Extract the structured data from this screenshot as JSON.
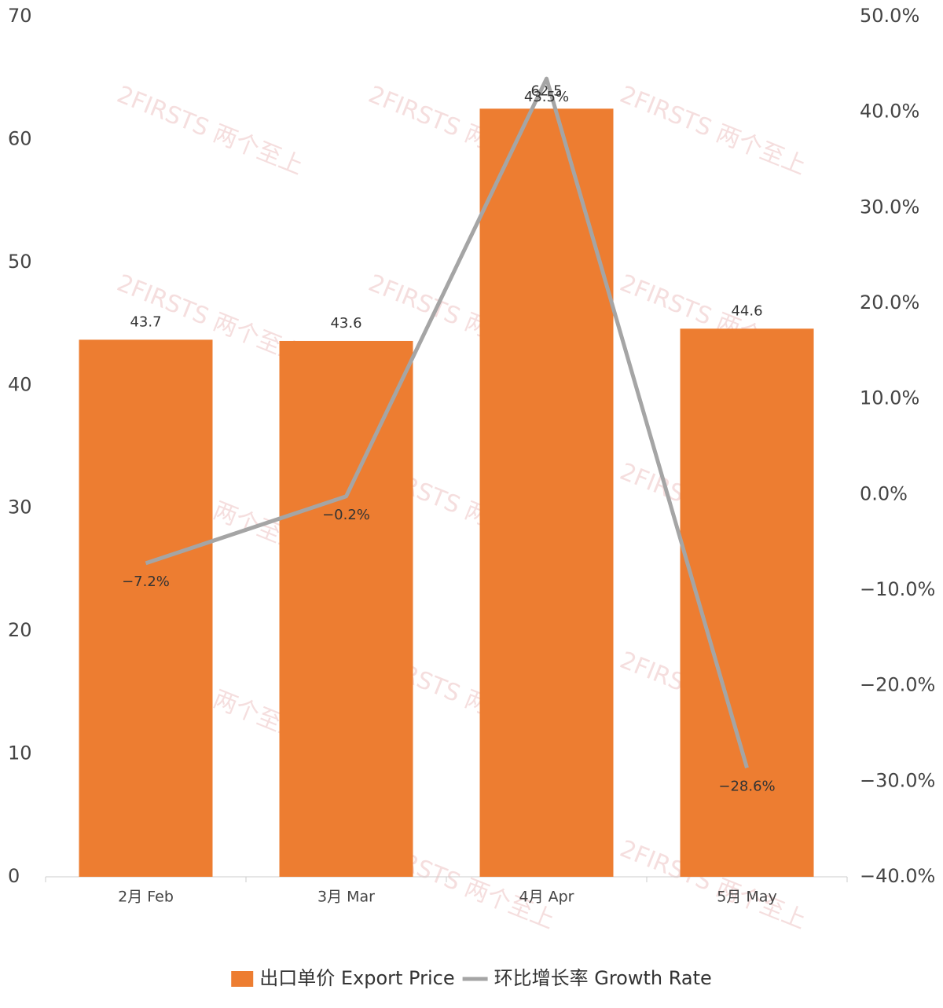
{
  "chart_data": {
    "type": "bar-line",
    "watermark": "2FIRSTS 两个至上",
    "categories": [
      "2月 Feb",
      "3月 Mar",
      "4月 Apr",
      "5月 May"
    ],
    "series": [
      {
        "name": "出口单价 Export Price",
        "type": "bar",
        "color": "#ed7d31",
        "values": [
          43.7,
          43.6,
          62.5,
          44.6
        ]
      },
      {
        "name": "环比增长率 Growth Rate",
        "type": "line",
        "axis": "y2",
        "color": "#a5a5a5",
        "values": [
          -7.2,
          -0.2,
          43.5,
          -28.6
        ],
        "value_labels": [
          "−7.2%",
          "−0.2%",
          "43.5%",
          "−28.6%"
        ]
      }
    ],
    "ylim": [
      0,
      70
    ],
    "yticks": [
      0,
      10,
      20,
      30,
      40,
      50,
      60,
      70
    ],
    "y2lim": [
      -40,
      50
    ],
    "y2ticks": [
      {
        "value": -40,
        "label": "−40.0%"
      },
      {
        "value": -30,
        "label": "−30.0%"
      },
      {
        "value": -20,
        "label": "−20.0%"
      },
      {
        "value": -10,
        "label": "−10.0%"
      },
      {
        "value": 0,
        "label": "0.0%"
      },
      {
        "value": 10,
        "label": "10.0%"
      },
      {
        "value": 20,
        "label": "20.0%"
      },
      {
        "value": 30,
        "label": "30.0%"
      },
      {
        "value": 40,
        "label": "40.0%"
      },
      {
        "value": 50,
        "label": "50.0%"
      }
    ],
    "grid": false,
    "legend": "bottom"
  }
}
